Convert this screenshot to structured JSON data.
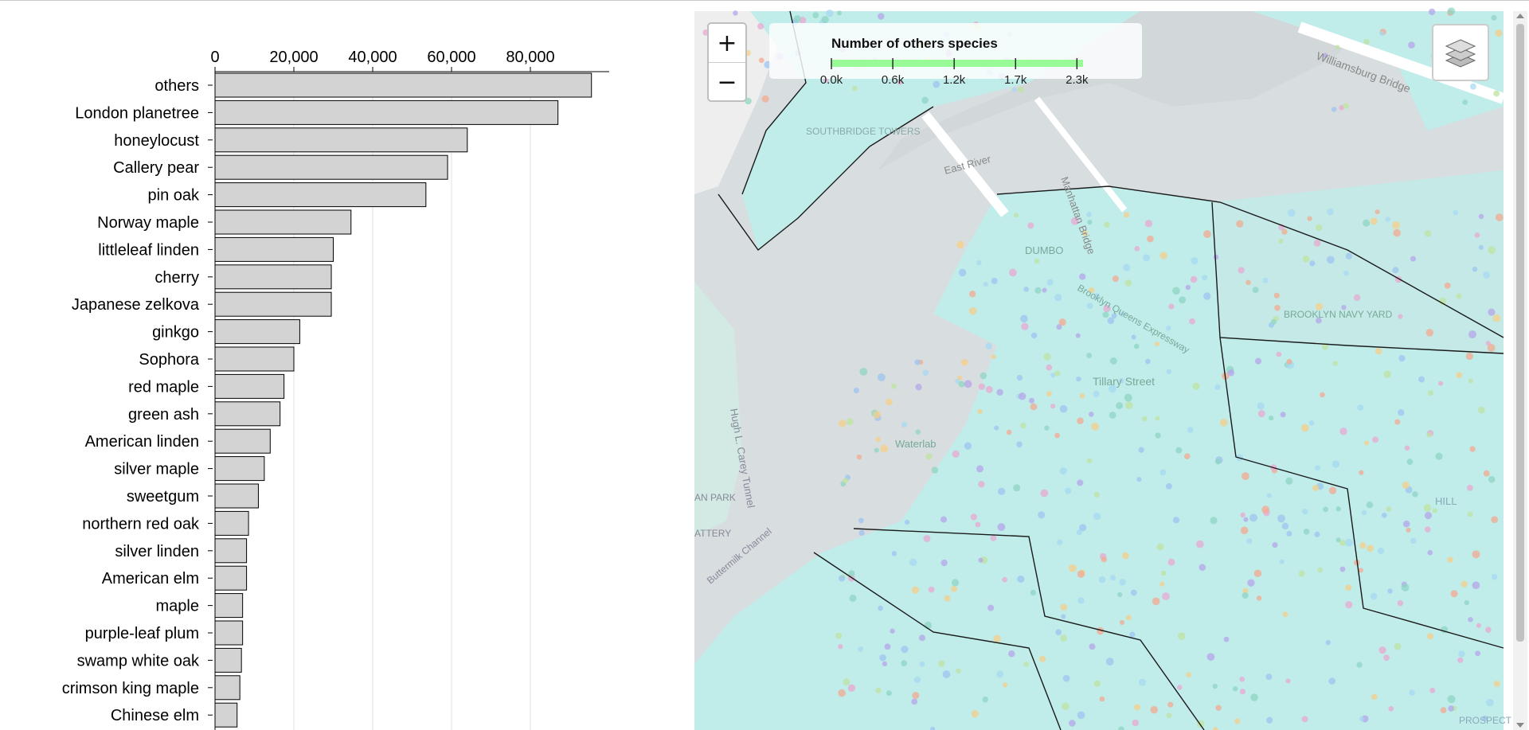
{
  "chart_data": {
    "type": "bar",
    "orientation": "horizontal",
    "categories": [
      "others",
      "London planetree",
      "honeylocust",
      "Callery pear",
      "pin oak",
      "Norway maple",
      "littleleaf linden",
      "cherry",
      "Japanese zelkova",
      "ginkgo",
      "Sophora",
      "red maple",
      "green ash",
      "American linden",
      "silver maple",
      "sweetgum",
      "northern red oak",
      "silver linden",
      "American elm",
      "maple",
      "purple-leaf plum",
      "swamp white oak",
      "crimson king maple",
      "Chinese elm"
    ],
    "values": [
      95500,
      87000,
      64000,
      59000,
      53500,
      34500,
      30000,
      29500,
      29500,
      21500,
      20000,
      17500,
      16500,
      14000,
      12500,
      11000,
      8500,
      8000,
      8000,
      7000,
      7000,
      6700,
      6300,
      5600
    ],
    "xlim": [
      0,
      100000
    ],
    "xticks": [
      0,
      20000,
      40000,
      60000,
      80000
    ],
    "xtick_labels": [
      "0",
      "20,000",
      "40,000",
      "60,000",
      "80,000"
    ],
    "grid": true,
    "bar_color": "#d3d3d3",
    "bar_stroke": "#000000"
  },
  "map": {
    "zoom_in_label": "+",
    "zoom_out_label": "−",
    "legend": {
      "title": "Number of others species",
      "ticks": [
        "0.0k",
        "0.6k",
        "1.2k",
        "1.7k",
        "2.3k"
      ],
      "bar_color": "#98fb98"
    },
    "place_labels": [
      "SOUTHBRIDGE TOWERS",
      "East River",
      "Manhattan Bridge",
      "Williamsburg Bridge",
      "DUMBO",
      "Brooklyn Queens Expressway",
      "BROOKLYN NAVY YARD",
      "Tillary Street",
      "Waterlab",
      "Hugh L. Carey Tunnel",
      "Buttermilk Channel",
      "AN PARK",
      "ATTERY",
      "HILL",
      "PROSPECT"
    ],
    "layers_icon": "layers-icon",
    "colors": {
      "water": "#d8dde0",
      "land_fill": "#c0ecea",
      "boundary": "#1a1a1a"
    }
  }
}
